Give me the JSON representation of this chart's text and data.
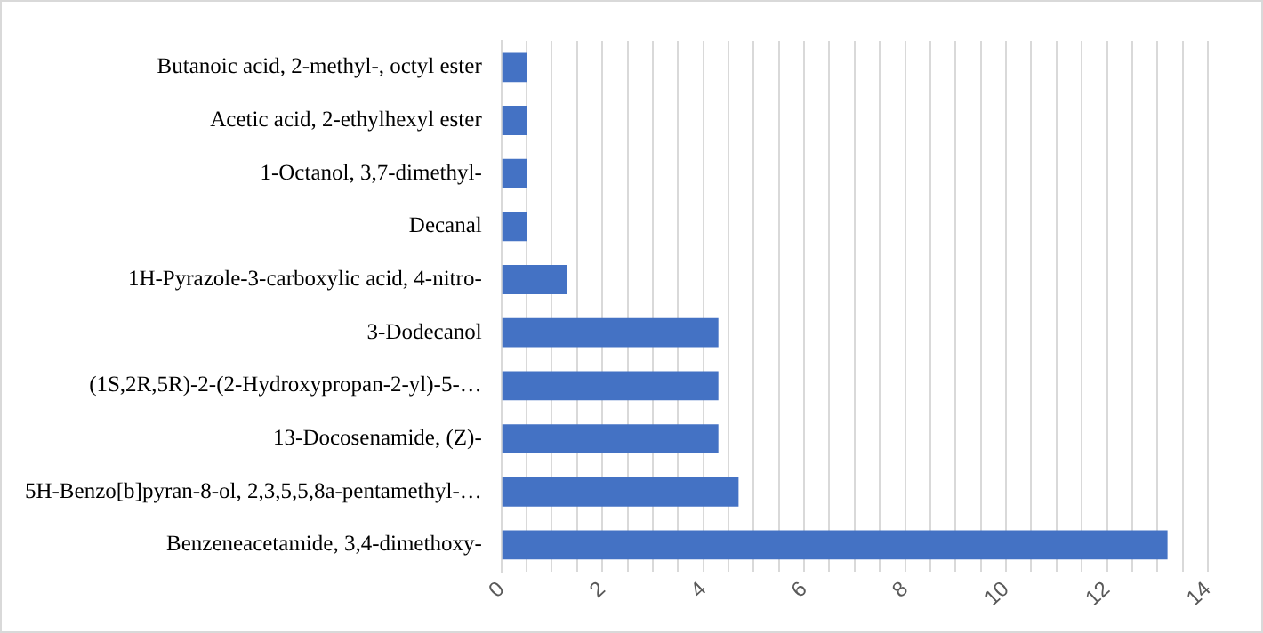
{
  "chart_data": {
    "type": "bar",
    "orientation": "horizontal",
    "categories": [
      "Butanoic acid, 2-methyl-, octyl ester",
      "Acetic acid, 2-ethylhexyl ester",
      "1-Octanol, 3,7-dimethyl-",
      "Decanal",
      "1H-Pyrazole-3-carboxylic acid, 4-nitro-",
      "3-Dodecanol",
      "(1S,2R,5R)-2-(2-Hydroxypropan-2-yl)-5-…",
      "13-Docosenamide, (Z)-",
      "5H-Benzo[b]pyran-8-ol, 2,3,5,5,8a-pentamethyl-…",
      "Benzeneacetamide, 3,4-dimethoxy-"
    ],
    "values": [
      0.5,
      0.5,
      0.5,
      0.5,
      1.3,
      4.3,
      4.3,
      4.3,
      4.7,
      13.2
    ],
    "color": "#4472c4",
    "xlim": [
      0,
      14
    ],
    "xticks": [
      0,
      {
        "value": 0.5,
        "label": null
      },
      {
        "value": 1,
        "label": null
      },
      {
        "value": 1.5,
        "label": null
      },
      2,
      {
        "value": 2.5,
        "label": null
      },
      {
        "value": 3,
        "label": null
      },
      {
        "value": 3.5,
        "label": null
      },
      4,
      {
        "value": 4.5,
        "label": null
      },
      {
        "value": 5,
        "label": null
      },
      {
        "value": 5.5,
        "label": null
      },
      6,
      {
        "value": 6.5,
        "label": null
      },
      {
        "value": 7,
        "label": null
      },
      {
        "value": 7.5,
        "label": null
      },
      8,
      {
        "value": 8.5,
        "label": null
      },
      {
        "value": 9,
        "label": null
      },
      {
        "value": 9.5,
        "label": null
      },
      10,
      {
        "value": 10.5,
        "label": null
      },
      {
        "value": 11,
        "label": null
      },
      {
        "value": 11.5,
        "label": null
      },
      12,
      {
        "value": 12.5,
        "label": null
      },
      {
        "value": 13,
        "label": null
      },
      {
        "value": 13.5,
        "label": null
      },
      14
    ],
    "grid": "x",
    "legend": false
  }
}
